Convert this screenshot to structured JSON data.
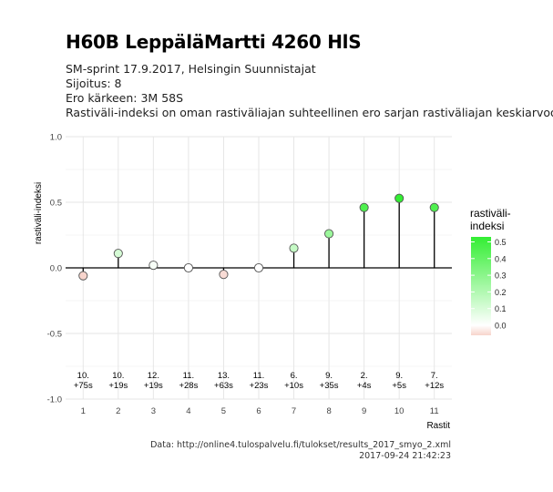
{
  "header": {
    "title": "H60B LeppäläMartti 4260 HlS",
    "subtitle_lines": [
      "SM-sprint 17.9.2017, Helsingin Suunnistajat",
      "Sijoitus: 8",
      "Ero kärkeen: 3M 58S",
      "Rastiväli-indeksi on oman rastiväliajan suhteellinen ero sarjan rastiväliajan keskiarvoon"
    ]
  },
  "caption": {
    "line1": "Data: http://online4.tulospalvelu.fi/tulokset/results_2017_smyo_2.xml",
    "line2": "2017-09-24 21:42:23"
  },
  "chart_data": {
    "type": "scatter",
    "style": "lollipop",
    "xlabel": "Rastit",
    "ylabel": "rastiväli-indeksi",
    "xlim": [
      0.5,
      11.5
    ],
    "ylim": [
      -1.0,
      1.0
    ],
    "x_ticks": [
      1,
      2,
      3,
      4,
      5,
      6,
      7,
      8,
      9,
      10,
      11
    ],
    "y_ticks": [
      -1.0,
      -0.5,
      0.0,
      0.5,
      1.0
    ],
    "y_tick_labels": [
      "-1.0",
      "-0.5",
      "0.0",
      "0.5",
      "1.0"
    ],
    "grid": true,
    "x": [
      1,
      2,
      3,
      4,
      5,
      6,
      7,
      8,
      9,
      10,
      11
    ],
    "values": [
      -0.06,
      0.11,
      0.02,
      0.0,
      -0.05,
      0.0,
      0.15,
      0.26,
      0.46,
      0.53,
      0.46
    ],
    "annotations": [
      {
        "rank": "10.",
        "diff": "+75s"
      },
      {
        "rank": "10.",
        "diff": "+19s"
      },
      {
        "rank": "12.",
        "diff": "+19s"
      },
      {
        "rank": "11.",
        "diff": "+28s"
      },
      {
        "rank": "13.",
        "diff": "+63s"
      },
      {
        "rank": "11.",
        "diff": "+23s"
      },
      {
        "rank": "6.",
        "diff": "+10s"
      },
      {
        "rank": "9.",
        "diff": "+35s"
      },
      {
        "rank": "2.",
        "diff": "+4s"
      },
      {
        "rank": "9.",
        "diff": "+5s"
      },
      {
        "rank": "7.",
        "diff": "+12s"
      }
    ],
    "legend": {
      "title_lines": [
        "rastiväli-",
        "indeksi"
      ],
      "ticks": [
        0.5,
        0.4,
        0.3,
        0.2,
        0.1,
        0.0
      ],
      "tick_labels": [
        "0.5",
        "0.4",
        "0.3",
        "0.2",
        "0.1",
        "0.0"
      ],
      "range": [
        -0.06,
        0.53
      ],
      "placement": "right"
    },
    "colors": {
      "positive": "#33ee33",
      "negative": "#f7d4cc",
      "neutral": "#ffffff",
      "background": "#ffffff",
      "grid": "#e6e6e6",
      "stem": "#000000"
    }
  }
}
